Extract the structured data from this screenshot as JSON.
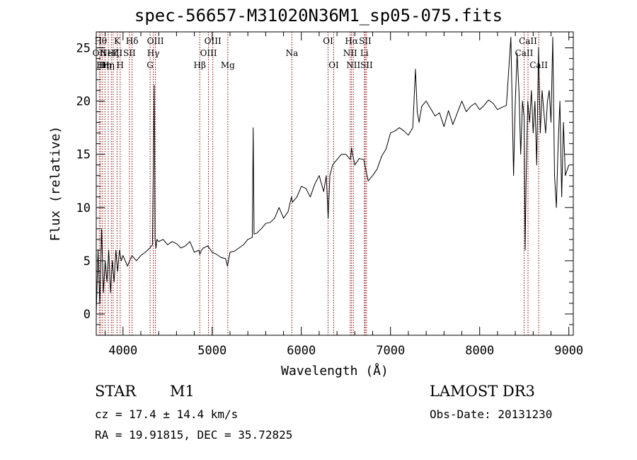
{
  "chart_data": {
    "type": "line",
    "title": "spec-56657-M31020N36M1_sp05-075.fits",
    "xlabel": "Wavelength (Å)",
    "ylabel": "Flux (relative)",
    "xlim": [
      3700,
      9050
    ],
    "ylim": [
      -2,
      26.5
    ],
    "xticks": [
      4000,
      5000,
      6000,
      7000,
      8000,
      9000
    ],
    "yticks": [
      0,
      5,
      10,
      15,
      20,
      25
    ],
    "grid": false,
    "series": [
      {
        "name": "spectrum",
        "x": [
          3700,
          3720,
          3740,
          3760,
          3780,
          3800,
          3820,
          3840,
          3860,
          3880,
          3900,
          3920,
          3940,
          3960,
          3980,
          4000,
          4050,
          4100,
          4150,
          4200,
          4250,
          4300,
          4330,
          4350,
          4360,
          4370,
          4380,
          4400,
          4450,
          4500,
          4550,
          4600,
          4650,
          4700,
          4750,
          4800,
          4850,
          4861,
          4880,
          4900,
          4950,
          5000,
          5050,
          5100,
          5150,
          5172,
          5200,
          5250,
          5300,
          5350,
          5400,
          5450,
          5460,
          5470,
          5500,
          5550,
          5600,
          5650,
          5700,
          5750,
          5800,
          5850,
          5890,
          5900,
          5950,
          6000,
          6050,
          6100,
          6150,
          6200,
          6250,
          6280,
          6300,
          6320,
          6350,
          6400,
          6450,
          6500,
          6550,
          6563,
          6580,
          6600,
          6650,
          6700,
          6750,
          6800,
          6850,
          6900,
          6950,
          7000,
          7050,
          7100,
          7150,
          7200,
          7250,
          7280,
          7300,
          7320,
          7350,
          7400,
          7450,
          7500,
          7550,
          7600,
          7650,
          7700,
          7750,
          7800,
          7850,
          7900,
          7950,
          8000,
          8050,
          8100,
          8150,
          8200,
          8250,
          8300,
          8350,
          8380,
          8400,
          8420,
          8440,
          8460,
          8480,
          8498,
          8510,
          8520,
          8540,
          8560,
          8580,
          8600,
          8620,
          8640,
          8660,
          8680,
          8700,
          8720,
          8740,
          8760,
          8780,
          8800,
          8820,
          8840,
          8860,
          8880,
          8900,
          8920,
          8940,
          8960,
          8980,
          9000
        ],
        "y": [
          0,
          6,
          1,
          8,
          2,
          5,
          3,
          6,
          2,
          5,
          3,
          6,
          4,
          6,
          5,
          5.5,
          4.5,
          5.5,
          5,
          5.5,
          5.8,
          6.2,
          6.5,
          21.5,
          7,
          6.2,
          7,
          6.8,
          7,
          6.5,
          6.8,
          6.6,
          6.2,
          6.4,
          6.8,
          5.8,
          6,
          5.6,
          6,
          6.2,
          6.4,
          5.8,
          5.6,
          5.3,
          5.2,
          4.5,
          5.8,
          5.9,
          6.2,
          6.5,
          7,
          7.2,
          17.5,
          7.5,
          7.6,
          8,
          8.5,
          8.6,
          9,
          10,
          9,
          9.6,
          11,
          10.5,
          11,
          12,
          11.8,
          11,
          12.2,
          13,
          11.5,
          13,
          9,
          13,
          14,
          14.5,
          15,
          15,
          14.5,
          15.6,
          14.8,
          14,
          14.6,
          14.5,
          12.5,
          13,
          13.6,
          14.8,
          15.5,
          17,
          17.2,
          17.5,
          17.2,
          16.8,
          17.5,
          23,
          19,
          18,
          19.5,
          20,
          19.3,
          18.6,
          18.9,
          17.6,
          19.1,
          17.8,
          18.9,
          20,
          19,
          19.5,
          19.8,
          19.2,
          19.6,
          20.1,
          19.8,
          19.2,
          19.4,
          19.6,
          26,
          13,
          20,
          24.5,
          21,
          15,
          20,
          18.5,
          6,
          12,
          20,
          18,
          21,
          17,
          20,
          14,
          25,
          17,
          21,
          19,
          17,
          20,
          21,
          18,
          26,
          13,
          10,
          16,
          20,
          11,
          18,
          13,
          13.5,
          14
        ]
      }
    ],
    "lines": [
      {
        "x": 3734,
        "label": "OII",
        "row": 1
      },
      {
        "x": 3750,
        "label": "Hθ",
        "row": 0
      },
      {
        "x": 3771,
        "label": "Hη",
        "row": 2
      },
      {
        "x": 3798,
        "label": "Hη",
        "row": 2
      },
      {
        "x": 3835,
        "label": "Hη",
        "row": 2
      },
      {
        "x": 3869,
        "label": "NeIII",
        "row": 1
      },
      {
        "x": 3889,
        "label": "Hζ",
        "row": 1
      },
      {
        "x": 3934,
        "label": "K",
        "row": 0
      },
      {
        "x": 3968,
        "label": "H",
        "row": 2
      },
      {
        "x": 4072,
        "label": "SII",
        "row": 1
      },
      {
        "x": 4102,
        "label": "Hδ",
        "row": 0
      },
      {
        "x": 4304,
        "label": "G",
        "row": 2
      },
      {
        "x": 4340,
        "label": "Hγ",
        "row": 1
      },
      {
        "x": 4364,
        "label": "OIII",
        "row": 0
      },
      {
        "x": 4861,
        "label": "Hβ",
        "row": 2
      },
      {
        "x": 4959,
        "label": "OIII",
        "row": 1
      },
      {
        "x": 5007,
        "label": "OIII",
        "row": 0
      },
      {
        "x": 5175,
        "label": "Mg",
        "row": 2
      },
      {
        "x": 5894,
        "label": "Na",
        "row": 1
      },
      {
        "x": 6300,
        "label": "OI",
        "row": 0
      },
      {
        "x": 6363,
        "label": "OI",
        "row": 2
      },
      {
        "x": 6548,
        "label": "NII",
        "row": 1
      },
      {
        "x": 6563,
        "label": "Hα",
        "row": 0
      },
      {
        "x": 6583,
        "label": "NII",
        "row": 2
      },
      {
        "x": 6707,
        "label": "Li",
        "row": 1
      },
      {
        "x": 6716,
        "label": "SII",
        "row": 0
      },
      {
        "x": 6731,
        "label": "SII",
        "row": 2
      },
      {
        "x": 8498,
        "label": "CaII",
        "row": 1
      },
      {
        "x": 8542,
        "label": "CaII",
        "row": 0
      },
      {
        "x": 8662,
        "label": "CaII",
        "row": 2
      }
    ],
    "line_color": "#8b0000",
    "data_color": "#000000"
  },
  "info": {
    "object_type": "STAR",
    "subclass": "M1",
    "survey": "LAMOST DR3",
    "cz": "cz = 17.4 ± 14.4 km/s",
    "obs_date": "Obs-Date: 20131230",
    "coords": "RA =  19.91815, DEC =  35.72825"
  }
}
